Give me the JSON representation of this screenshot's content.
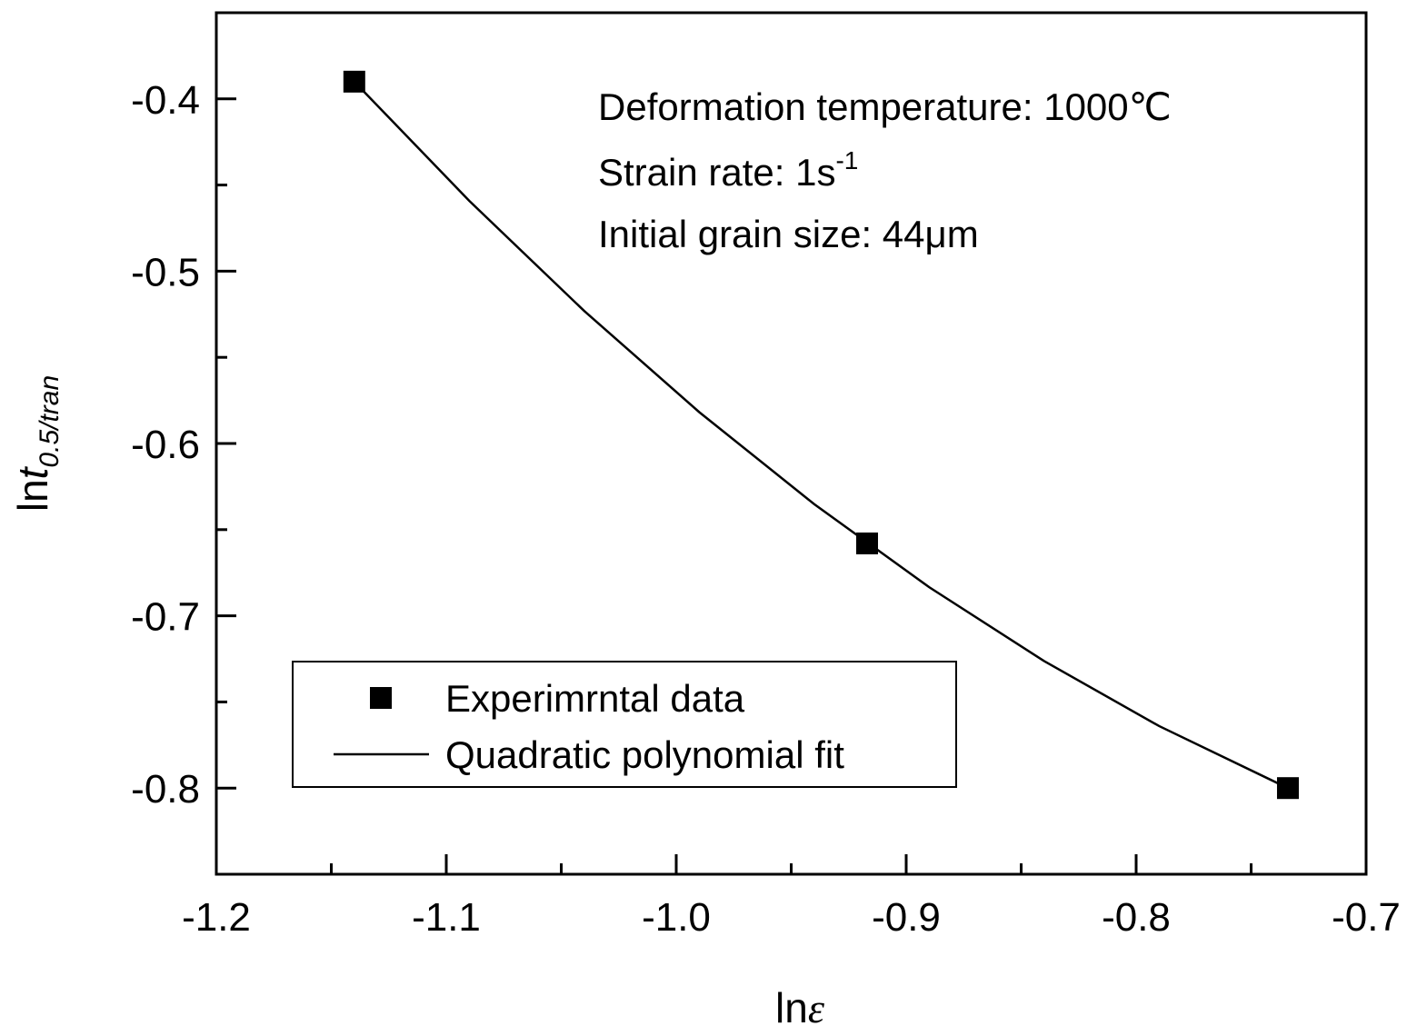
{
  "chart_data": {
    "type": "scatter-line",
    "xlabel": {
      "base": "ln",
      "var": "ε"
    },
    "ylabel": {
      "base": "ln",
      "var": "t",
      "sub": "0.5/tran"
    },
    "annotations": [
      {
        "text": "Deformation temperature: 1000℃"
      },
      {
        "text": "Strain rate: 1s",
        "sup": "-1"
      },
      {
        "text": "Initial grain size: 44μm"
      }
    ],
    "xlim": [
      -1.2,
      -0.7
    ],
    "ylim": [
      -0.85,
      -0.35
    ],
    "xticks": [
      -1.2,
      -1.1,
      {
        "value": -1,
        "label": "-1.0"
      },
      -0.9,
      -0.8,
      -0.7
    ],
    "yticks": [
      -0.4,
      -0.5,
      -0.6,
      -0.7,
      -0.8
    ],
    "xminor": [
      -1.15,
      -1.05,
      -0.95,
      -0.85,
      -0.75
    ],
    "yminor": [
      -0.45,
      -0.55,
      -0.65,
      -0.75
    ],
    "legend": "lower-left",
    "series": [
      {
        "name": "Experimrntal data",
        "kind": "marker",
        "color": "#000000",
        "x": [
          -1.14,
          -0.917,
          -0.734
        ],
        "values": [
          -0.39,
          -0.658,
          -0.8
        ]
      },
      {
        "name": "Quadratic polynomial fit",
        "kind": "line",
        "color": "#000000",
        "x": [
          -1.14,
          -1.09,
          -1.04,
          -0.99,
          -0.94,
          -0.89,
          -0.84,
          -0.79,
          -0.734
        ],
        "values": [
          -0.39,
          -0.4592,
          -0.5231,
          -0.5818,
          -0.6352,
          -0.6834,
          -0.7263,
          -0.764,
          -0.8
        ]
      }
    ]
  }
}
